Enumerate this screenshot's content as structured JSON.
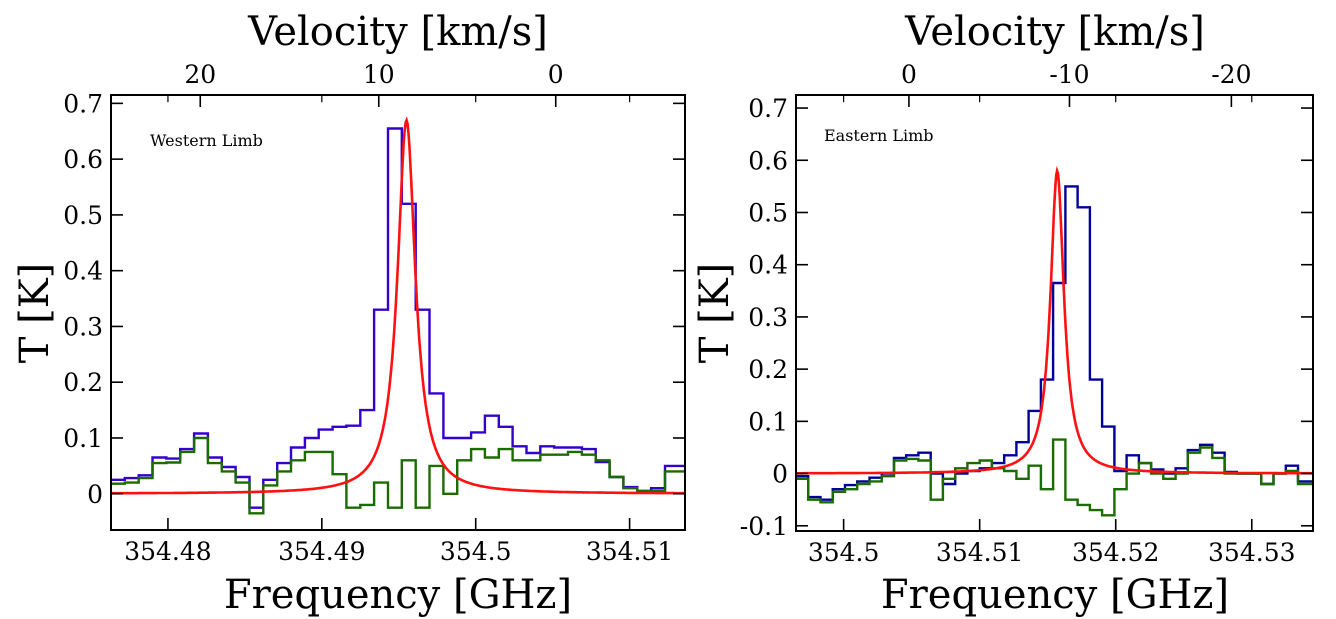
{
  "chart_data": [
    {
      "type": "line",
      "annotation": "Western Limb",
      "xlabel": "Frequency [GHz]",
      "ylabel": "T [K]",
      "top_xlabel": "Velocity [km/s]",
      "xlim": [
        354.4763,
        354.5136
      ],
      "ylim": [
        -0.065,
        0.715
      ],
      "xticks": [
        354.48,
        354.49,
        354.5,
        354.51
      ],
      "xtick_labels": [
        "354.48",
        "354.49",
        "354.5",
        "354.51"
      ],
      "yticks": [
        0,
        0.1,
        0.2,
        0.3,
        0.4,
        0.5,
        0.6,
        0.7
      ],
      "ytick_labels": [
        "0",
        "0.1",
        "0.2",
        "0.3",
        "0.4",
        "0.5",
        "0.6",
        "0.7"
      ],
      "top_ticks": [
        {
          "velocity": 20,
          "frequency": 354.4821,
          "label": "20"
        },
        {
          "velocity": 10,
          "frequency": 354.4937,
          "label": "10"
        },
        {
          "velocity": 0,
          "frequency": 354.5052,
          "label": "0"
        }
      ],
      "series": [
        {
          "kind": "step",
          "color": "#3300cc",
          "x": [
            354.4763,
            354.4772,
            354.4781,
            354.479,
            354.4799,
            354.4808,
            354.4817,
            354.4826,
            354.4835,
            354.4844,
            354.4853,
            354.4862,
            354.4871,
            354.488,
            354.4889,
            354.4898,
            354.4907,
            354.4916,
            354.4925,
            354.4934,
            354.4943,
            354.4952,
            354.4961,
            354.497,
            354.4979,
            354.4988,
            354.4997,
            354.5006,
            354.5015,
            354.5024,
            354.5033,
            354.5042,
            354.5051,
            354.506,
            354.5069,
            354.5078,
            354.5087,
            354.5096,
            354.5105,
            354.5114,
            354.5123,
            354.5132
          ],
          "y": [
            0.025,
            0.028,
            0.033,
            0.065,
            0.063,
            0.08,
            0.108,
            0.065,
            0.048,
            0.03,
            -0.025,
            0.025,
            0.055,
            0.083,
            0.1,
            0.115,
            0.12,
            0.122,
            0.15,
            0.33,
            0.655,
            0.52,
            0.33,
            0.18,
            0.1,
            0.1,
            0.11,
            0.14,
            0.12,
            0.085,
            0.073,
            0.085,
            0.083,
            0.083,
            0.08,
            0.057,
            0.03,
            0.012,
            0.005,
            0.01,
            0.05,
            0.05
          ]
        },
        {
          "kind": "step",
          "color": "#1a6b00",
          "x": [
            354.4763,
            354.4772,
            354.4781,
            354.479,
            354.4799,
            354.4808,
            354.4817,
            354.4826,
            354.4835,
            354.4844,
            354.4853,
            354.4862,
            354.4871,
            354.488,
            354.4889,
            354.4898,
            354.4907,
            354.4916,
            354.4925,
            354.4934,
            354.4943,
            354.4952,
            354.4961,
            354.497,
            354.4979,
            354.4988,
            354.4997,
            354.5006,
            354.5015,
            354.5024,
            354.5033,
            354.5042,
            354.5051,
            354.506,
            354.5069,
            354.5078,
            354.5087,
            354.5096,
            354.5105,
            354.5114,
            354.5123,
            354.5132
          ],
          "y": [
            0.018,
            0.02,
            0.028,
            0.055,
            0.056,
            0.075,
            0.1,
            0.055,
            0.04,
            0.02,
            -0.035,
            0.015,
            0.04,
            0.06,
            0.075,
            0.075,
            0.035,
            -0.025,
            -0.02,
            0.02,
            -0.025,
            0.06,
            -0.025,
            0.05,
            0.0,
            0.06,
            0.08,
            0.065,
            0.08,
            0.06,
            0.06,
            0.07,
            0.07,
            0.075,
            0.07,
            0.06,
            0.03,
            0.01,
            0.005,
            0.005,
            0.04,
            0.04
          ]
        },
        {
          "kind": "fit",
          "color": "#ff1111",
          "model": "lorentzian",
          "center": 354.4955,
          "amplitude": 0.67,
          "half_width": 0.0007
        }
      ]
    },
    {
      "type": "line",
      "annotation": "Eastern Limb",
      "xlabel": "Frequency [GHz]",
      "ylabel": "T [K]",
      "top_xlabel": "Velocity [km/s]",
      "xlim": [
        354.4965,
        354.5345
      ],
      "ylim": [
        -0.11,
        0.725
      ],
      "xticks": [
        354.5,
        354.51,
        354.52,
        354.53
      ],
      "xtick_labels": [
        "354.5",
        "354.51",
        "354.52",
        "354.53"
      ],
      "yticks": [
        -0.1,
        0,
        0.1,
        0.2,
        0.3,
        0.4,
        0.5,
        0.6,
        0.7
      ],
      "ytick_labels": [
        "-0.1",
        "0",
        "0.1",
        "0.2",
        "0.3",
        "0.4",
        "0.5",
        "0.6",
        "0.7"
      ],
      "top_ticks": [
        {
          "velocity": 0,
          "frequency": 354.5048,
          "label": "0"
        },
        {
          "velocity": -10,
          "frequency": 354.5166,
          "label": "-10"
        },
        {
          "velocity": -20,
          "frequency": 354.5285,
          "label": "-20"
        }
      ],
      "series": [
        {
          "kind": "step",
          "color": "#000099",
          "x": [
            354.4965,
            354.4974,
            354.4983,
            354.4992,
            354.5001,
            354.501,
            354.5019,
            354.5028,
            354.5037,
            354.5046,
            354.5055,
            354.5064,
            354.5073,
            354.5082,
            354.5091,
            354.51,
            354.5109,
            354.5118,
            354.5127,
            354.5136,
            354.5145,
            354.5154,
            354.5163,
            354.5172,
            354.5181,
            354.519,
            354.5199,
            354.5208,
            354.5217,
            354.5226,
            354.5235,
            354.5244,
            354.5253,
            354.5262,
            354.5271,
            354.528,
            354.5289,
            354.5298,
            354.5307,
            354.5316,
            354.5325,
            354.5334,
            354.5343
          ],
          "y": [
            -0.005,
            -0.045,
            -0.05,
            -0.03,
            -0.022,
            -0.015,
            -0.008,
            0.0,
            0.03,
            0.035,
            0.04,
            0.0,
            -0.02,
            0.0,
            0.005,
            0.01,
            0.02,
            0.035,
            0.06,
            0.12,
            0.18,
            0.365,
            0.55,
            0.51,
            0.18,
            0.09,
            0.005,
            0.035,
            0.02,
            0.008,
            0.0,
            0.01,
            0.045,
            0.055,
            0.04,
            0.003,
            0.0,
            0.0,
            -0.02,
            0.0,
            0.015,
            -0.015,
            -0.015
          ]
        },
        {
          "kind": "step",
          "color": "#1a6b00",
          "x": [
            354.4965,
            354.4974,
            354.4983,
            354.4992,
            354.5001,
            354.501,
            354.5019,
            354.5028,
            354.5037,
            354.5046,
            354.5055,
            354.5064,
            354.5073,
            354.5082,
            354.5091,
            354.51,
            354.5109,
            354.5118,
            354.5127,
            354.5136,
            354.5145,
            354.5154,
            354.5163,
            354.5172,
            354.5181,
            354.519,
            354.5199,
            354.5208,
            354.5217,
            354.5226,
            354.5235,
            354.5244,
            354.5253,
            354.5262,
            354.5271,
            354.528,
            354.5289,
            354.5298,
            354.5307,
            354.5316,
            354.5325,
            354.5334,
            354.5343
          ],
          "y": [
            -0.01,
            -0.05,
            -0.055,
            -0.035,
            -0.03,
            -0.02,
            -0.015,
            -0.005,
            0.025,
            0.028,
            0.025,
            -0.05,
            -0.01,
            0.01,
            0.02,
            0.025,
            0.01,
            0.005,
            -0.01,
            0.015,
            -0.03,
            0.065,
            -0.05,
            -0.06,
            -0.07,
            -0.08,
            -0.03,
            0.0,
            0.02,
            0.0,
            -0.01,
            0.0,
            0.04,
            0.05,
            0.03,
            0.0,
            0.0,
            0.0,
            -0.02,
            0.0,
            0.005,
            -0.02,
            -0.02
          ]
        },
        {
          "kind": "fit",
          "color": "#ff1111",
          "model": "lorentzian",
          "center": 354.5157,
          "amplitude": 0.58,
          "half_width": 0.0006
        }
      ]
    }
  ]
}
